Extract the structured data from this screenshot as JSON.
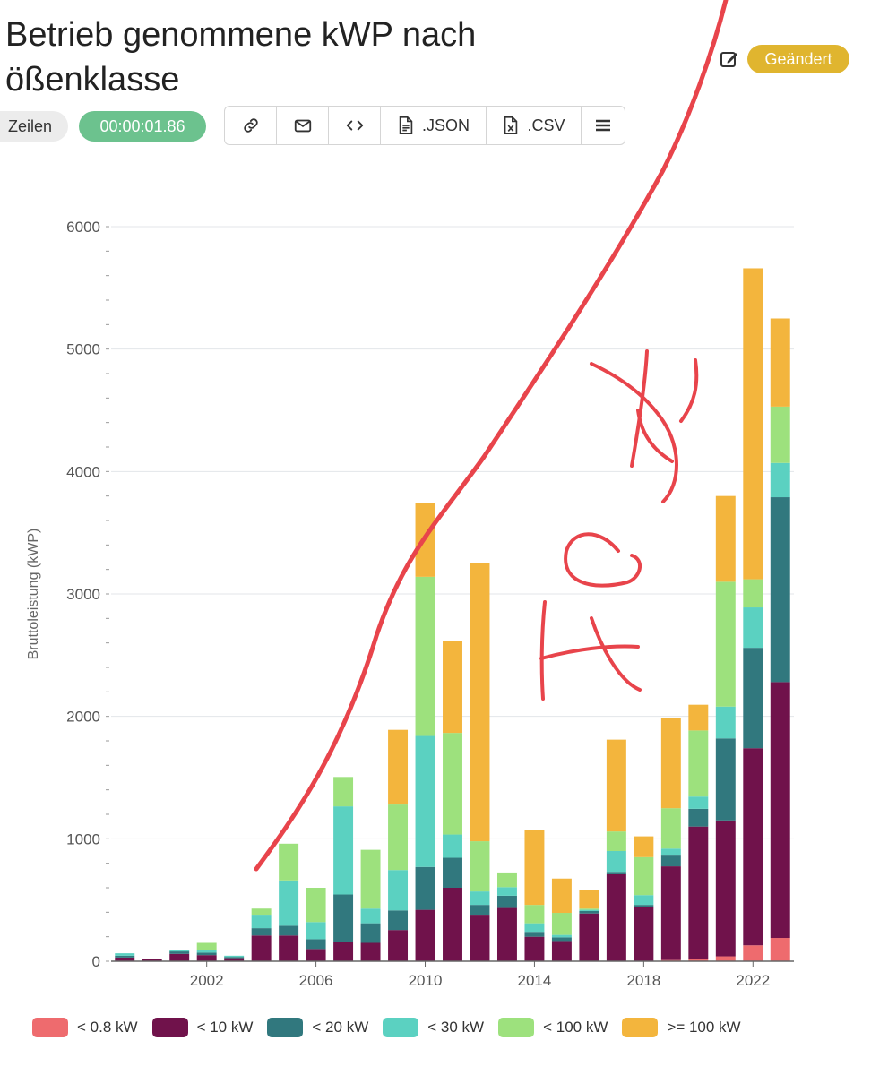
{
  "header": {
    "title_line1": "Betrieb genommene kWP nach",
    "title_line2": "ößenklasse",
    "status_badge": "Geändert",
    "rows_label": "Zeilen",
    "elapsed_time": "00:00:01.86"
  },
  "toolbar": {
    "json_label": ".JSON",
    "csv_label": ".CSV",
    "icons": [
      "link-icon",
      "mail-icon",
      "code-icon",
      "file-json-icon",
      "file-csv-icon",
      "menu-icon"
    ]
  },
  "annotation": {
    "handwritten_text": "Fehlt",
    "color": "#e8444b"
  },
  "chart_data": {
    "type": "bar",
    "stacked": true,
    "ylabel": "Bruttoleistung (kWP)",
    "xlabel": "",
    "ylim": [
      0,
      6000
    ],
    "yticks": [
      0,
      1000,
      2000,
      3000,
      4000,
      5000,
      6000
    ],
    "xticks": [
      "2002",
      "2006",
      "2010",
      "2014",
      "2018",
      "2022"
    ],
    "grid": true,
    "legend_position": "bottom",
    "categories": [
      "1999",
      "2000",
      "2001",
      "2002",
      "2003",
      "2004",
      "2005",
      "2006",
      "2007",
      "2008",
      "2009",
      "2010",
      "2011",
      "2012",
      "2013",
      "2014",
      "2015",
      "2016",
      "2017",
      "2018",
      "2019",
      "2020",
      "2021",
      "2022",
      "2023"
    ],
    "series": [
      {
        "name": "< 0.8 kW",
        "color": "#ee6b6e",
        "values": [
          0,
          0,
          0,
          0,
          0,
          0,
          0,
          0,
          0,
          0,
          0,
          0,
          0,
          0,
          0,
          0,
          0,
          0,
          0,
          0,
          10,
          20,
          40,
          130,
          190
        ]
      },
      {
        "name": "< 10 kW",
        "color": "#70124b",
        "values": [
          30,
          15,
          60,
          50,
          25,
          210,
          210,
          100,
          155,
          150,
          255,
          420,
          600,
          380,
          435,
          200,
          165,
          390,
          710,
          440,
          765,
          1080,
          1110,
          1610,
          2090
        ]
      },
      {
        "name": "< 20 kW",
        "color": "#31787e",
        "values": [
          15,
          5,
          20,
          20,
          10,
          60,
          80,
          80,
          390,
          160,
          160,
          350,
          245,
          80,
          100,
          40,
          30,
          20,
          20,
          20,
          95,
          145,
          670,
          820,
          1510
        ]
      },
      {
        "name": "< 30 kW",
        "color": "#5bd1c1",
        "values": [
          20,
          0,
          10,
          20,
          10,
          110,
          370,
          140,
          720,
          120,
          330,
          1070,
          190,
          110,
          70,
          70,
          20,
          10,
          170,
          80,
          50,
          100,
          260,
          330,
          280
        ]
      },
      {
        "name": "< 100 kW",
        "color": "#9de17d",
        "values": [
          0,
          0,
          0,
          60,
          0,
          50,
          300,
          280,
          240,
          480,
          535,
          1300,
          830,
          410,
          120,
          150,
          180,
          10,
          160,
          310,
          330,
          540,
          1020,
          230,
          460
        ]
      },
      {
        "name": ">= 100 kW",
        "color": "#f3b53d",
        "values": [
          0,
          0,
          0,
          0,
          0,
          0,
          0,
          0,
          0,
          0,
          610,
          600,
          750,
          2270,
          0,
          610,
          280,
          150,
          750,
          170,
          740,
          210,
          700,
          2540,
          720
        ]
      }
    ]
  }
}
